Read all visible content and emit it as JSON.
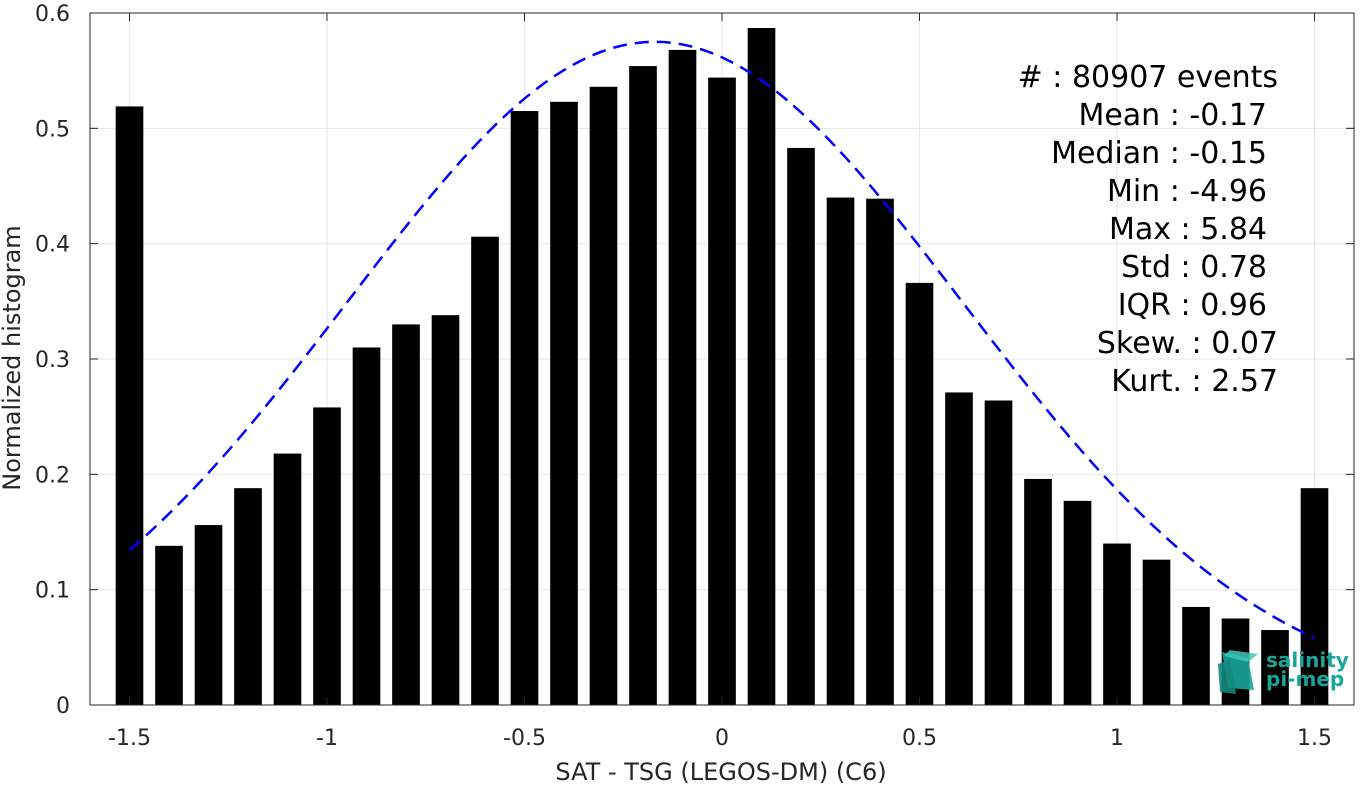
{
  "chart_data": {
    "type": "bar",
    "xlabel": "SAT - TSG (LEGOS-DM) (C6)",
    "ylabel": "Normalized histogram",
    "xlim": [
      -1.6,
      1.6
    ],
    "ylim": [
      0,
      0.6
    ],
    "grid": true,
    "xticks": [
      -1.5,
      -1,
      -0.5,
      0,
      0.5,
      1,
      1.5
    ],
    "xtick_labels": [
      "-1.5",
      "-1",
      "-0.5",
      "0",
      "0.5",
      "1",
      "1.5"
    ],
    "yticks": [
      0,
      0.1,
      0.2,
      0.3,
      0.4,
      0.5,
      0.6
    ],
    "ytick_labels": [
      "0",
      "0.1",
      "0.2",
      "0.3",
      "0.4",
      "0.5",
      "0.6"
    ],
    "bin_width": 0.1,
    "bar_width": 0.07,
    "bar_color": "#000000",
    "x": [
      -1.5,
      -1.4,
      -1.3,
      -1.2,
      -1.1,
      -1.0,
      -0.9,
      -0.8,
      -0.7,
      -0.6,
      -0.5,
      -0.4,
      -0.3,
      -0.2,
      -0.1,
      0.0,
      0.1,
      0.2,
      0.3,
      0.4,
      0.5,
      0.6,
      0.7,
      0.8,
      0.9,
      1.0,
      1.1,
      1.2,
      1.3,
      1.4,
      1.5
    ],
    "values": [
      0.519,
      0.138,
      0.156,
      0.188,
      0.218,
      0.258,
      0.31,
      0.33,
      0.338,
      0.406,
      0.515,
      0.523,
      0.536,
      0.554,
      0.568,
      0.544,
      0.587,
      0.483,
      0.44,
      0.439,
      0.366,
      0.271,
      0.264,
      0.196,
      0.177,
      0.14,
      0.126,
      0.085,
      0.075,
      0.065,
      0.188
    ],
    "fit_curve": {
      "style": "dashed",
      "color": "#0000ff",
      "mean": -0.17,
      "std": 0.78,
      "peak": 0.575,
      "x_range": [
        -1.5,
        1.5
      ]
    },
    "stats_text": [
      "#  : 80907 events",
      "Mean : -0.17",
      "Median : -0.15",
      "Min : -4.96",
      "Max : 5.84",
      "Std : 0.78",
      "IQR : 0.96",
      "Skew. : 0.07",
      "Kurt. : 2.57"
    ]
  },
  "logo": {
    "line1": "salinity",
    "line2": "pi-mep",
    "color": "#1aa59a"
  }
}
